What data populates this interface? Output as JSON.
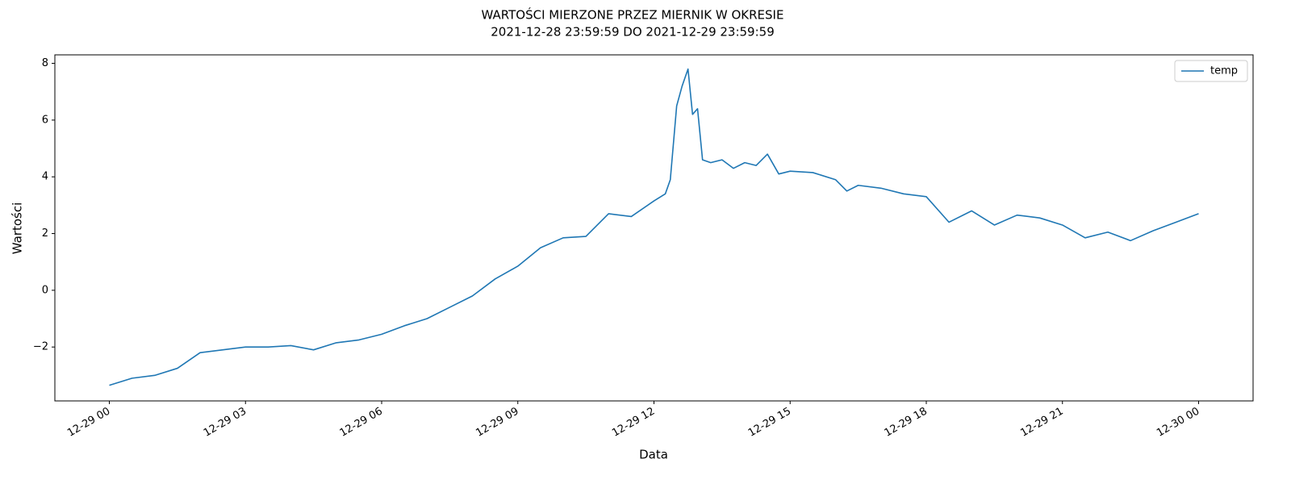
{
  "chart_data": {
    "type": "line",
    "title": [
      "WARTOŚCI MIERZONE PRZEZ MIERNIK W OKRESIE",
      "2021-12-28 23:59:59 DO 2021-12-29 23:59:59"
    ],
    "x_label": "Data",
    "y_label": "Wartości",
    "legend": "upper right",
    "series": [
      {
        "name": "temp",
        "color": "#1f77b4",
        "x": [
          0,
          0.5,
          1,
          1.5,
          2,
          2.5,
          3,
          3.5,
          4,
          4.5,
          5,
          5.5,
          6,
          6.5,
          7,
          7.5,
          8,
          8.5,
          9,
          9.5,
          10,
          10.5,
          11,
          11.5,
          12,
          12.25,
          12.36,
          12.5,
          12.62,
          12.75,
          12.85,
          12.96,
          13.07,
          13.25,
          13.5,
          13.75,
          14,
          14.25,
          14.5,
          14.75,
          15,
          15.5,
          16,
          16.25,
          16.5,
          17,
          17.5,
          18,
          18.5,
          19,
          19.5,
          20,
          20.5,
          21,
          21.5,
          22,
          22.5,
          23,
          23.5,
          24
        ],
        "values": [
          -3.35,
          -3.1,
          -3.0,
          -2.75,
          -2.2,
          -2.1,
          -2.0,
          -2.0,
          -1.95,
          -2.1,
          -1.85,
          -1.75,
          -1.55,
          -1.25,
          -1.0,
          -0.6,
          -0.2,
          0.4,
          0.85,
          1.5,
          1.85,
          1.9,
          2.7,
          2.6,
          3.15,
          3.4,
          3.9,
          6.5,
          7.2,
          7.8,
          6.2,
          6.4,
          4.6,
          4.5,
          4.6,
          4.3,
          4.5,
          4.4,
          4.8,
          4.1,
          4.2,
          4.15,
          3.9,
          3.5,
          3.7,
          3.6,
          3.4,
          3.3,
          2.4,
          2.8,
          2.3,
          2.65,
          2.55,
          2.3,
          1.85,
          2.05,
          1.75,
          2.1,
          2.4,
          2.7
        ]
      }
    ],
    "xlim": [
      -1.2,
      25.2
    ],
    "xticks": [
      {
        "value": 0,
        "label": "12-29 00"
      },
      {
        "value": 3,
        "label": "12-29 03"
      },
      {
        "value": 6,
        "label": "12-29 06"
      },
      {
        "value": 9,
        "label": "12-29 09"
      },
      {
        "value": 12,
        "label": "12-29 12"
      },
      {
        "value": 15,
        "label": "12-29 15"
      },
      {
        "value": 18,
        "label": "12-29 18"
      },
      {
        "value": 21,
        "label": "12-29 21"
      },
      {
        "value": 24,
        "label": "12-30 00"
      }
    ],
    "ylim": [
      -3.9,
      8.3
    ],
    "yticks": [
      {
        "value": -2,
        "label": "−2"
      },
      0,
      2,
      4,
      6,
      8
    ],
    "grid": false
  }
}
